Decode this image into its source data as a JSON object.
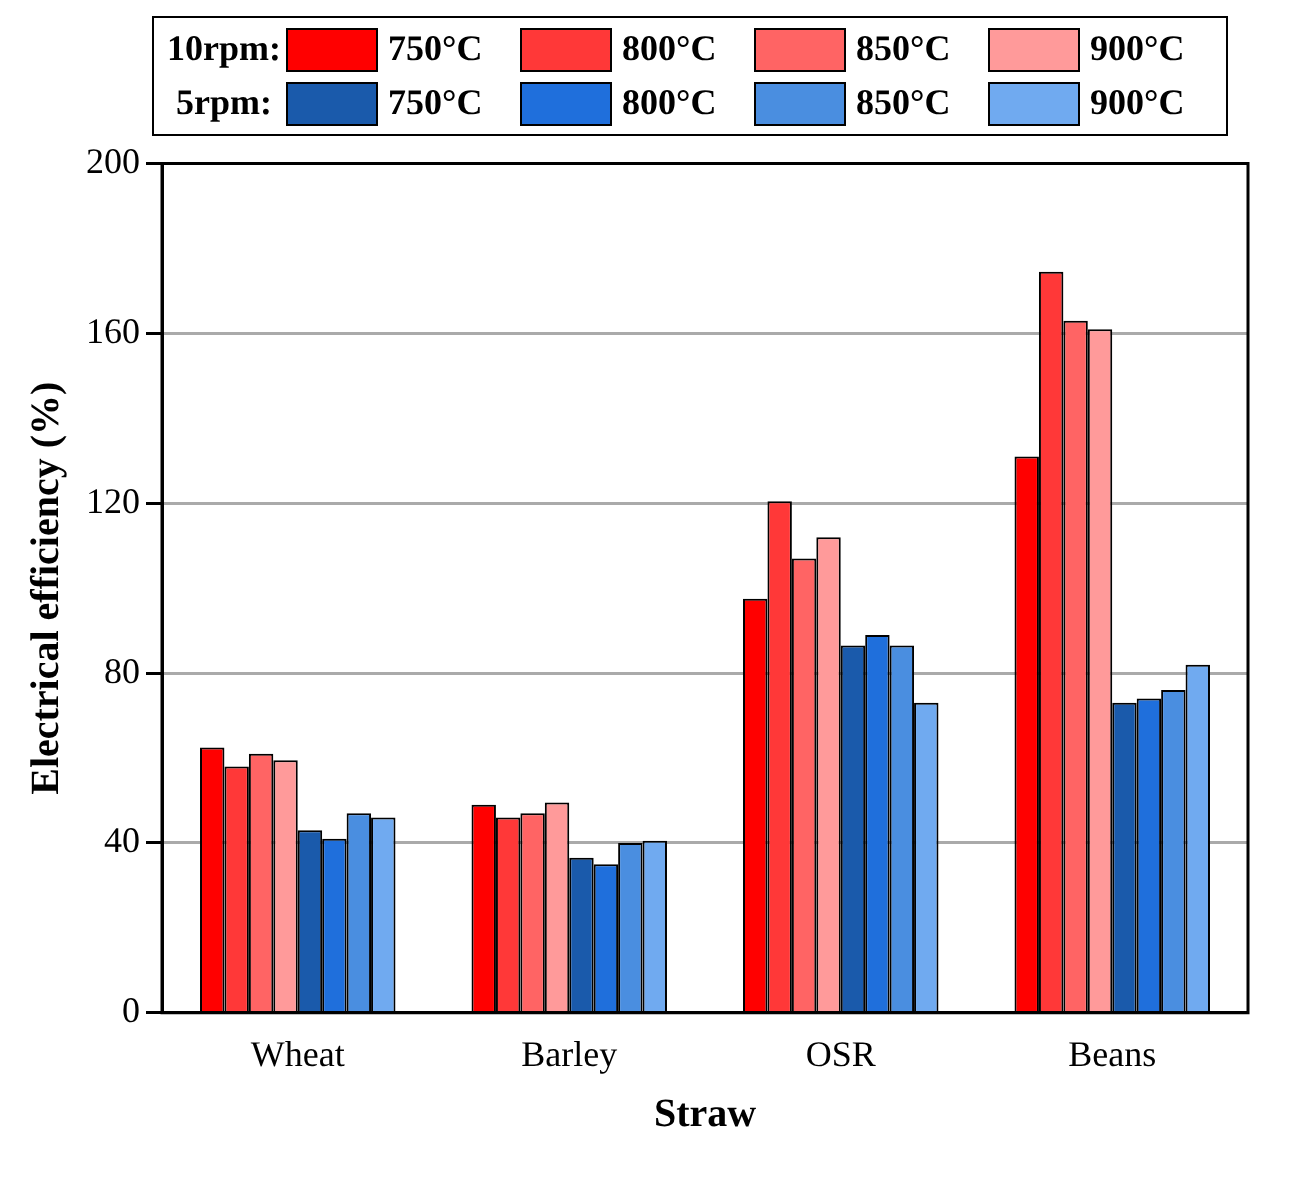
{
  "chart_data": {
    "type": "bar",
    "xlabel": "Straw",
    "ylabel": "Electrical efficiency (%)",
    "categories": [
      "Wheat",
      "Barley",
      "OSR",
      "Beans"
    ],
    "series": [
      {
        "name": "750°C",
        "color": "#ff0000",
        "values": [
          62.5,
          49,
          97.5,
          131
        ]
      },
      {
        "name": "800°C",
        "color": "#ff3838",
        "values": [
          58,
          46,
          120.5,
          174.5
        ]
      },
      {
        "name": "850°C",
        "color": "#ff6464",
        "values": [
          61,
          47,
          107,
          163
        ]
      },
      {
        "name": "900°C",
        "color": "#ff9a9a",
        "values": [
          59.5,
          49.5,
          112,
          161
        ]
      },
      {
        "name": "750°C",
        "color": "#1a5aab",
        "values": [
          43,
          36.5,
          86.5,
          73
        ]
      },
      {
        "name": "800°C",
        "color": "#1f6fdc",
        "values": [
          41,
          35,
          89,
          74
        ]
      },
      {
        "name": "850°C",
        "color": "#4a8ee0",
        "values": [
          47,
          40,
          86.5,
          76
        ]
      },
      {
        "name": "900°C",
        "color": "#70aaf0",
        "values": [
          46,
          40.5,
          73,
          82
        ]
      }
    ],
    "annotations": [
      "10rpm:",
      "5rpm:"
    ],
    "ylim": [
      0,
      200
    ],
    "yticks": [
      0,
      40,
      80,
      120,
      160,
      200
    ],
    "grid": "y",
    "legend": "top"
  }
}
